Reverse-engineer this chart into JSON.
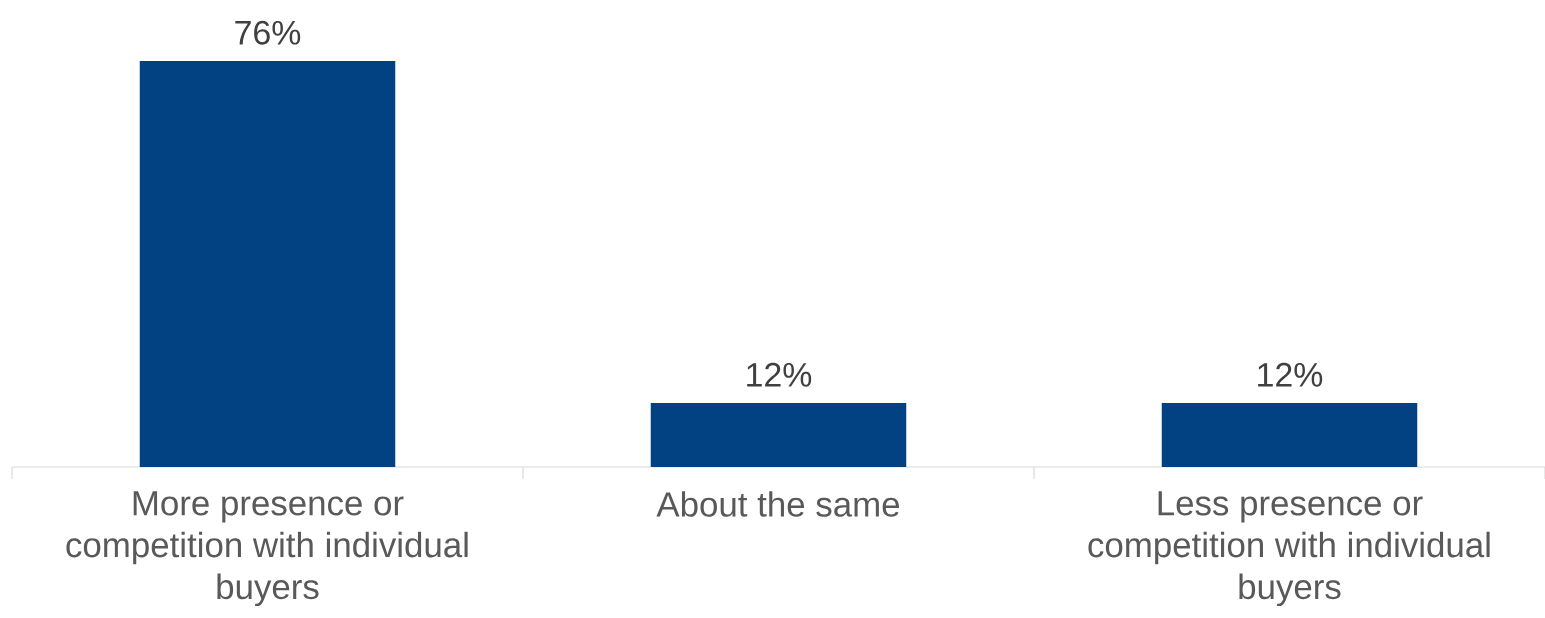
{
  "chart_data": {
    "type": "bar",
    "categories": [
      "More presence or competition with individual buyers",
      "About the same",
      "Less presence or competition with individual buyers"
    ],
    "values": [
      76,
      12,
      12
    ],
    "value_labels": [
      "76%",
      "12%",
      "12%"
    ],
    "color": "#024182"
  }
}
